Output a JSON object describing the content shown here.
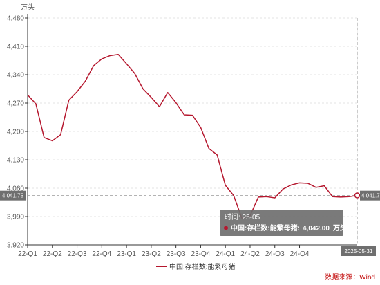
{
  "chart_data": {
    "type": "line",
    "yunit": "万头",
    "ylim": [
      3920,
      4480
    ],
    "yticks": [
      3920,
      3990,
      4060,
      4130,
      4200,
      4270,
      4340,
      4410,
      4480
    ],
    "ytick_labels": [
      "3,920",
      "3,990",
      "4,060",
      "4,130",
      "4,200",
      "4,270",
      "4,340",
      "4,410",
      "4,480"
    ],
    "xtick_labels": [
      "22-Q1",
      "22-Q2",
      "22-Q3",
      "22-Q4",
      "23-Q1",
      "23-Q2",
      "23-Q3",
      "23-Q4",
      "24-Q1",
      "24-Q2",
      "24-Q3",
      "24-Q4"
    ],
    "grid": true,
    "series": [
      {
        "name": "中国:存栏数:能繁母猪",
        "color": "#b5172e",
        "x": [
          "2022-01",
          "2022-02",
          "2022-03",
          "2022-04",
          "2022-05",
          "2022-06",
          "2022-07",
          "2022-08",
          "2022-09",
          "2022-10",
          "2022-11",
          "2022-12",
          "2023-01",
          "2023-02",
          "2023-03",
          "2023-04",
          "2023-05",
          "2023-06",
          "2023-07",
          "2023-08",
          "2023-09",
          "2023-10",
          "2023-11",
          "2023-12",
          "2024-01",
          "2024-02",
          "2024-03",
          "2024-04",
          "2024-05",
          "2024-06",
          "2024-07",
          "2024-08",
          "2024-09",
          "2024-10",
          "2024-11",
          "2024-12",
          "2025-01",
          "2025-02",
          "2025-03",
          "2025-04",
          "2025-05"
        ],
        "values": [
          4290,
          4268,
          4185,
          4177,
          4192,
          4277,
          4298,
          4324,
          4362,
          4379,
          4387,
          4390,
          4367,
          4343,
          4305,
          4284,
          4261,
          4296,
          4271,
          4241,
          4240,
          4210,
          4158,
          4142,
          4067,
          4042,
          3986,
          3992,
          4038,
          4039,
          4036,
          4058,
          4068,
          4073,
          4072,
          4062,
          4066,
          4039,
          4038,
          4039,
          4042
        ]
      }
    ],
    "legend": {
      "position": "bottom-center",
      "label": "中国:存栏数:能繁母猪"
    },
    "tooltip": {
      "time_label": "时间: 25-05",
      "series_label": "中国:存栏数:能繁母猪:",
      "value_text": "4,042.00",
      "unit_text": "万头"
    },
    "cursor": {
      "y_value": 4041.75,
      "y_label": "4,041.75",
      "right_label": "4,041.7",
      "x_label": "2025-05-31"
    },
    "source": "数据来源：Wind"
  }
}
